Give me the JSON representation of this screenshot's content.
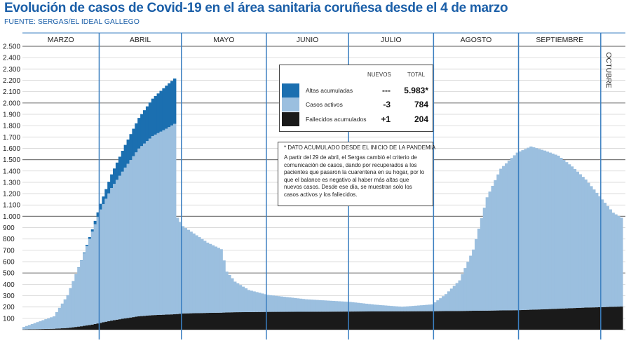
{
  "title": "Evolución de casos de Covid-19 en el área sanitaria coruñesa desde el 4 de marzo",
  "source": "FUENTE: SERGAS/EL IDEAL GALLEGO",
  "legend": {
    "col_new": "NUEVOS",
    "col_total": "TOTAL",
    "rows": [
      {
        "label": "Altas acumuladas",
        "new": "---",
        "total": "5.983*",
        "color": "#1b6fb0"
      },
      {
        "label": "Casos activos",
        "new": "-3",
        "total": "784",
        "color": "#9bbfdf"
      },
      {
        "label": "Fallecidos acumulados",
        "new": "+1",
        "total": "204",
        "color": "#1a1a1a"
      }
    ]
  },
  "note": {
    "title": "* DATO ACUMULADO DESDE EL INICIO DE LA PANDEMIA",
    "text": "A partir del 29 de abril, el Sergas cambió el criterio de comunicación de casos, dando por recuperados a los pacientes que pasaron la cuarentena en su hogar, por lo que el balance es negativo al haber más altas que nuevos casos. Desde ese día, se muestran solo los casos activos y los fallecidos."
  },
  "chart_data": {
    "type": "area",
    "stacked": true,
    "ylim": [
      0,
      2500
    ],
    "yticks": [
      100,
      200,
      300,
      400,
      500,
      600,
      700,
      800,
      900,
      1000,
      1100,
      1200,
      1300,
      1400,
      1500,
      1600,
      1700,
      1800,
      1900,
      2000,
      2100,
      2200,
      2300,
      2400,
      2500
    ],
    "ytick_labels": [
      "100",
      "200",
      "300",
      "400",
      "500",
      "600",
      "700",
      "800",
      "900",
      "1.000",
      "1.100",
      "1.200",
      "1.300",
      "1.400",
      "1.500",
      "1.600",
      "1.700",
      "1.800",
      "1.900",
      "2.000",
      "2.100",
      "2.200",
      "2.300",
      "2.400",
      "2.500"
    ],
    "months": [
      "MARZO",
      "ABRIL",
      "MAYO",
      "JUNIO",
      "JULIO",
      "AGOSTO",
      "SEPTIEMBRE",
      "OCTUBRE"
    ],
    "x_dates": [
      "2020-03-04",
      "2020-03-15",
      "2020-03-20",
      "2020-03-25",
      "2020-03-29",
      "2020-04-01",
      "2020-04-05",
      "2020-04-10",
      "2020-04-15",
      "2020-04-20",
      "2020-04-25",
      "2020-04-28",
      "2020-04-29",
      "2020-05-01",
      "2020-05-10",
      "2020-05-15",
      "2020-05-17",
      "2020-05-20",
      "2020-05-25",
      "2020-06-01",
      "2020-06-15",
      "2020-07-01",
      "2020-07-10",
      "2020-07-20",
      "2020-07-31",
      "2020-08-05",
      "2020-08-10",
      "2020-08-15",
      "2020-08-20",
      "2020-08-25",
      "2020-08-31",
      "2020-09-05",
      "2020-09-10",
      "2020-09-15",
      "2020-09-20",
      "2020-09-25",
      "2020-09-30",
      "2020-10-05",
      "2020-10-08"
    ],
    "series": [
      {
        "name": "Altas acumuladas",
        "color": "#1b6fb0",
        "values": [
          0,
          0,
          0,
          2,
          20,
          50,
          120,
          200,
          270,
          330,
          380,
          400,
          0,
          0,
          0,
          0,
          0,
          0,
          0,
          0,
          0,
          0,
          0,
          0,
          0,
          0,
          0,
          0,
          0,
          0,
          0,
          0,
          0,
          0,
          0,
          0,
          0,
          0,
          0
        ]
      },
      {
        "name": "Casos activos",
        "color": "#9bbfdf",
        "values": [
          22,
          110,
          290,
          580,
          820,
          1000,
          1170,
          1330,
          1480,
          1580,
          1640,
          1680,
          850,
          770,
          620,
          560,
          360,
          270,
          195,
          150,
          110,
          85,
          60,
          40,
          60,
          150,
          270,
          540,
          1000,
          1250,
          1390,
          1440,
          1400,
          1350,
          1250,
          1130,
          980,
          830,
          784
        ]
      },
      {
        "name": "Fallecidos acumulados",
        "color": "#1a1a1a",
        "values": [
          2,
          8,
          15,
          30,
          45,
          60,
          80,
          100,
          118,
          128,
          133,
          136,
          138,
          143,
          148,
          150,
          152,
          154,
          155,
          157,
          158,
          160,
          161,
          162,
          163,
          164,
          165,
          167,
          168,
          170,
          172,
          176,
          180,
          185,
          190,
          195,
          198,
          202,
          204
        ]
      }
    ]
  }
}
